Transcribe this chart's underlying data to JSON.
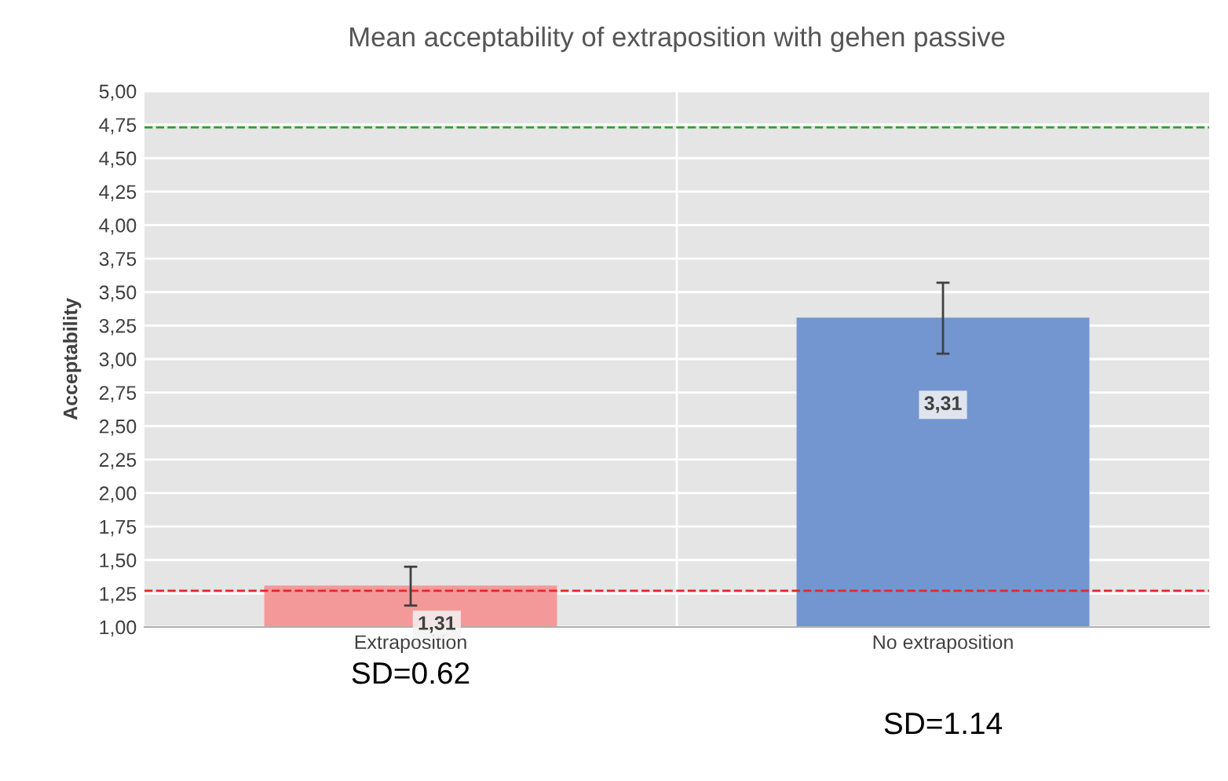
{
  "chart_data": {
    "type": "bar",
    "title": "Mean acceptability of extraposition with gehen passive",
    "ylabel": "Acceptability",
    "categories": [
      "Extraposition",
      "No extraposition"
    ],
    "values": [
      1.31,
      3.31
    ],
    "colors": [
      "#f4999a",
      "#7396d0"
    ],
    "value_labels": [
      "1,31",
      "3,31"
    ],
    "errors": [
      [
        1.16,
        1.45
      ],
      [
        3.04,
        3.57
      ]
    ],
    "ylim": [
      1.0,
      5.0
    ],
    "yticks": [
      {
        "value": 1.0,
        "label": "1,00"
      },
      {
        "value": 1.25,
        "label": "1,25"
      },
      {
        "value": 1.5,
        "label": "1,50"
      },
      {
        "value": 1.75,
        "label": "1,75"
      },
      {
        "value": 2.0,
        "label": "2,00"
      },
      {
        "value": 2.25,
        "label": "2,25"
      },
      {
        "value": 2.5,
        "label": "2,50"
      },
      {
        "value": 2.75,
        "label": "2,75"
      },
      {
        "value": 3.0,
        "label": "3,00"
      },
      {
        "value": 3.25,
        "label": "3,25"
      },
      {
        "value": 3.5,
        "label": "3,50"
      },
      {
        "value": 3.75,
        "label": "3,75"
      },
      {
        "value": 4.0,
        "label": "4,00"
      },
      {
        "value": 4.25,
        "label": "4,25"
      },
      {
        "value": 4.5,
        "label": "4,50"
      },
      {
        "value": 4.75,
        "label": "4,75"
      },
      {
        "value": 5.0,
        "label": "5,00"
      }
    ],
    "ref_lines": [
      {
        "axis": "y",
        "value": 4.73,
        "color": "#2ca02c",
        "line_style": "dashed"
      },
      {
        "axis": "y",
        "value": 1.27,
        "color": "#e8262a",
        "line_style": "dashed"
      }
    ],
    "annotations": [
      "SD=0.62",
      "SD=1.14"
    ],
    "grid": true
  }
}
